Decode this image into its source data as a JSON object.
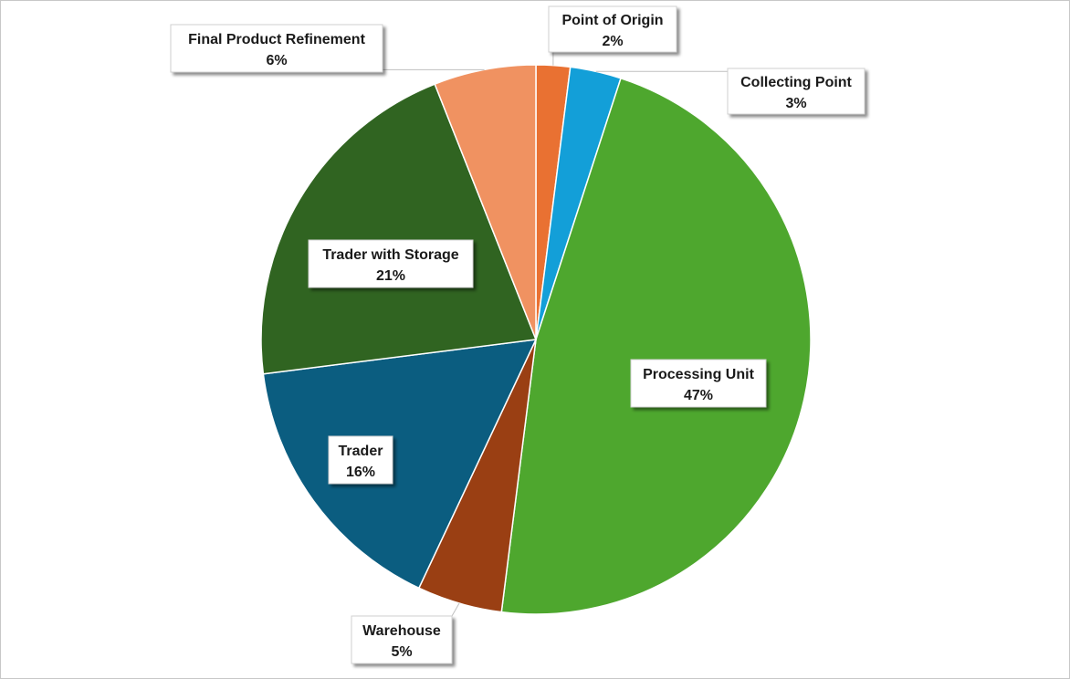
{
  "chart_data": {
    "type": "pie",
    "start_angle_deg": 0,
    "direction": "clockwise",
    "slices": [
      {
        "label": "Point of Origin",
        "value": 2,
        "value_label": "2%",
        "color": "#e97132"
      },
      {
        "label": "Collecting Point",
        "value": 3,
        "value_label": "3%",
        "color": "#139fd8"
      },
      {
        "label": "Processing Unit",
        "value": 47,
        "value_label": "47%",
        "color": "#4ea72e"
      },
      {
        "label": "Warehouse",
        "value": 5,
        "value_label": "5%",
        "color": "#9a3f13"
      },
      {
        "label": "Trader",
        "value": 16,
        "value_label": "16%",
        "color": "#0b5d80"
      },
      {
        "label": "Trader with Storage",
        "value": 21,
        "value_label": "21%",
        "color": "#306421"
      },
      {
        "label": "Final Product Refinement",
        "value": 6,
        "value_label": "6%",
        "color": "#f09261"
      }
    ],
    "legend": "none"
  }
}
